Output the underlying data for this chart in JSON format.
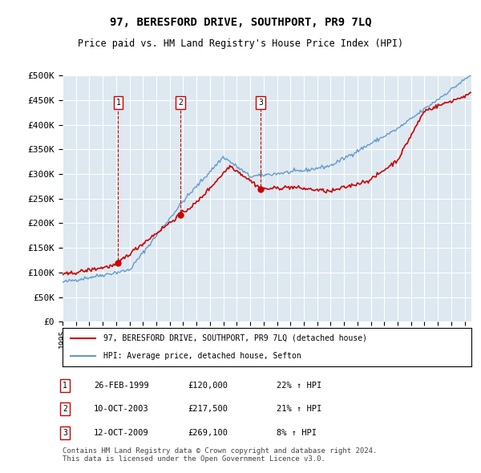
{
  "title": "97, BERESFORD DRIVE, SOUTHPORT, PR9 7LQ",
  "subtitle": "Price paid vs. HM Land Registry's House Price Index (HPI)",
  "plot_bg_color": "#dde8f0",
  "ylim": [
    0,
    500000
  ],
  "yticks": [
    0,
    50000,
    100000,
    150000,
    200000,
    250000,
    300000,
    350000,
    400000,
    450000,
    500000
  ],
  "ytick_labels": [
    "£0",
    "£50K",
    "£100K",
    "£150K",
    "£200K",
    "£250K",
    "£300K",
    "£350K",
    "£400K",
    "£450K",
    "£500K"
  ],
  "xlim_start": 1995.0,
  "xlim_end": 2025.5,
  "sale_dates": [
    1999.15,
    2003.78,
    2009.79
  ],
  "sale_prices": [
    120000,
    217500,
    269100
  ],
  "sale_labels": [
    "1",
    "2",
    "3"
  ],
  "legend_line1": "97, BERESFORD DRIVE, SOUTHPORT, PR9 7LQ (detached house)",
  "legend_line2": "HPI: Average price, detached house, Sefton",
  "table_rows": [
    [
      "1",
      "26-FEB-1999",
      "£120,000",
      "22% ↑ HPI"
    ],
    [
      "2",
      "10-OCT-2003",
      "£217,500",
      "21% ↑ HPI"
    ],
    [
      "3",
      "12-OCT-2009",
      "£269,100",
      "8% ↑ HPI"
    ]
  ],
  "footer": "Contains HM Land Registry data © Crown copyright and database right 2024.\nThis data is licensed under the Open Government Licence v3.0.",
  "red_color": "#cc0000",
  "blue_color": "#6699cc"
}
